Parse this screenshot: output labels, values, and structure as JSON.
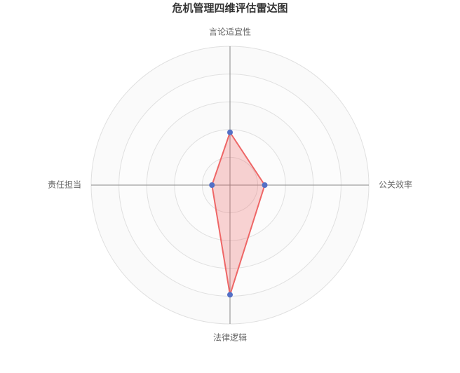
{
  "chart_data": {
    "type": "radar",
    "title": "危机管理四维评估雷达图",
    "categories": [
      "言论适宜性",
      "公关效率",
      "法律逻辑",
      "责任担当"
    ],
    "series": [
      {
        "color": "#ee6666",
        "values": [
          38,
          25,
          79,
          13
        ]
      }
    ],
    "marker_color": "#5470c6",
    "rlim": [
      0,
      100
    ],
    "rticks": [
      0,
      20,
      40,
      60,
      80,
      100
    ],
    "grid": true
  }
}
